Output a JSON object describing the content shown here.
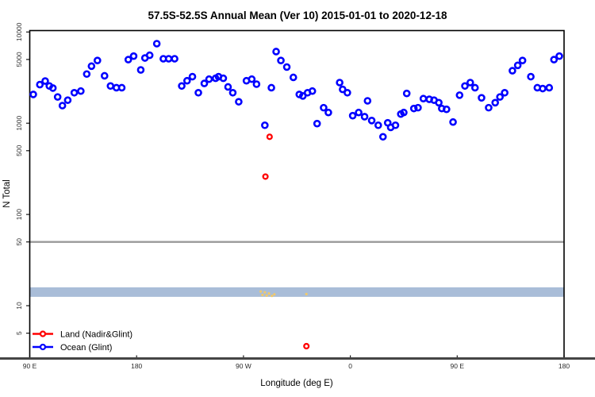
{
  "title": "57.5S-52.5S Annual Mean (Ver 10)   2015-01-01 to 2020-12-18",
  "axes": {
    "x_label": "Longitude (deg E)",
    "y_label": "N Total"
  },
  "legend": {
    "items": [
      {
        "label": "Land (Nadir&Glint)",
        "color": "#ff0000"
      },
      {
        "label": "Ocean (Glint)",
        "color": "#0000ff"
      }
    ]
  },
  "colors": {
    "ocean": "#0000ff",
    "land": "#ff0000",
    "land_minor": "#f1c96b",
    "band": "#a9bdd8",
    "reference_line": "#999999",
    "axis_baseline": "#454545",
    "box": "#000000"
  },
  "chart_data": {
    "type": "scatter",
    "title": "57.5S-52.5S Annual Mean (Ver 10)   2015-01-01 to 2020-12-18",
    "xlabel": "Longitude (deg E)",
    "ylabel": "N Total",
    "y_scale": "log",
    "ylim": [
      2.5,
      10000
    ],
    "grid": false,
    "legend_position": "bottom-left",
    "x_axis": {
      "span_deg": [
        90,
        540
      ],
      "note": "longitude increases eastward and wraps: 90E,180,90W,0,90E,180",
      "ticks": [
        {
          "deg": 90,
          "label": "90 E"
        },
        {
          "deg": 180,
          "label": "180"
        },
        {
          "deg": 270,
          "label": "90 W"
        },
        {
          "deg": 360,
          "label": "0"
        },
        {
          "deg": 450,
          "label": "90 E"
        },
        {
          "deg": 540,
          "label": "180"
        }
      ]
    },
    "y_ticks": [
      10000,
      5000,
      1000,
      500,
      100,
      50,
      10,
      5
    ],
    "reference_line_value": 50,
    "band_value_range": [
      12.5,
      15.9
    ],
    "series": [
      {
        "name": "Ocean (Glint)",
        "marker": "open-circle",
        "color": "#0000ff",
        "points": [
          [
            93,
            2070
          ],
          [
            98.5,
            2650
          ],
          [
            103,
            2900
          ],
          [
            106.5,
            2560
          ],
          [
            109.5,
            2430
          ],
          [
            113.5,
            1940
          ],
          [
            117.5,
            1560
          ],
          [
            122,
            1790
          ],
          [
            127.5,
            2160
          ],
          [
            133,
            2250
          ],
          [
            138,
            3460
          ],
          [
            142,
            4220
          ],
          [
            147,
            4870
          ],
          [
            153,
            3310
          ],
          [
            158,
            2560
          ],
          [
            163,
            2450
          ],
          [
            167.5,
            2450
          ],
          [
            173,
            4980
          ],
          [
            177.5,
            5440
          ],
          [
            183.5,
            3840
          ],
          [
            187,
            5190
          ],
          [
            191,
            5560
          ],
          [
            197,
            7450
          ],
          [
            202.5,
            5090
          ],
          [
            207,
            5090
          ],
          [
            212,
            5090
          ],
          [
            218,
            2560
          ],
          [
            222.5,
            2920
          ],
          [
            227,
            3240
          ],
          [
            232,
            2160
          ],
          [
            237,
            2730
          ],
          [
            241,
            3040
          ],
          [
            246.5,
            3110
          ],
          [
            249,
            3240
          ],
          [
            253,
            3110
          ],
          [
            257,
            2500
          ],
          [
            261,
            2160
          ],
          [
            266,
            1720
          ],
          [
            272.5,
            2920
          ],
          [
            277,
            3040
          ],
          [
            281,
            2680
          ],
          [
            288,
            950
          ],
          [
            293.5,
            2450
          ],
          [
            297.5,
            6100
          ],
          [
            301.5,
            4870
          ],
          [
            306.5,
            4130
          ],
          [
            312,
            3180
          ],
          [
            317,
            2070
          ],
          [
            320,
            1990
          ],
          [
            324,
            2160
          ],
          [
            328,
            2250
          ],
          [
            332,
            990
          ],
          [
            337.5,
            1480
          ],
          [
            341.5,
            1310
          ],
          [
            351,
            2790
          ],
          [
            353.5,
            2350
          ],
          [
            357.5,
            2160
          ],
          [
            362,
            1210
          ],
          [
            367,
            1310
          ],
          [
            372,
            1180
          ],
          [
            374.5,
            1760
          ],
          [
            378,
            1070
          ],
          [
            383.5,
            950
          ],
          [
            387.5,
            710
          ],
          [
            391.5,
            1010
          ],
          [
            394,
            900
          ],
          [
            398,
            950
          ],
          [
            402.5,
            1260
          ],
          [
            405,
            1310
          ],
          [
            407.5,
            2120
          ],
          [
            413.5,
            1450
          ],
          [
            417,
            1480
          ],
          [
            421.5,
            1860
          ],
          [
            426.5,
            1830
          ],
          [
            430.5,
            1790
          ],
          [
            434.5,
            1680
          ],
          [
            437,
            1450
          ],
          [
            441,
            1420
          ],
          [
            446.5,
            1030
          ],
          [
            452,
            2030
          ],
          [
            456.5,
            2560
          ],
          [
            461,
            2790
          ],
          [
            465,
            2450
          ],
          [
            470.5,
            1900
          ],
          [
            476.5,
            1480
          ],
          [
            482,
            1680
          ],
          [
            486,
            1940
          ],
          [
            490,
            2160
          ],
          [
            496.5,
            3760
          ],
          [
            501,
            4310
          ],
          [
            505,
            4870
          ],
          [
            512,
            3240
          ],
          [
            517.5,
            2450
          ],
          [
            522,
            2400
          ],
          [
            527.5,
            2450
          ],
          [
            531.5,
            4980
          ],
          [
            536,
            5440
          ]
        ]
      },
      {
        "name": "Land (Nadir&Glint)",
        "marker": "open-circle",
        "color": "#ff0000",
        "points": [
          [
            292,
            710
          ],
          [
            288.5,
            260
          ],
          [
            323,
            3.6
          ]
        ]
      },
      {
        "name": "unlabeled-yellow-marks",
        "marker": "dot",
        "color": "#f1c96b",
        "points": [
          [
            284.5,
            14.3
          ],
          [
            286,
            13.1
          ],
          [
            288,
            14.0
          ],
          [
            289.5,
            12.9
          ],
          [
            291.5,
            13.6
          ],
          [
            294,
            12.8
          ],
          [
            296,
            13.3
          ],
          [
            323,
            13.4
          ]
        ]
      }
    ]
  }
}
